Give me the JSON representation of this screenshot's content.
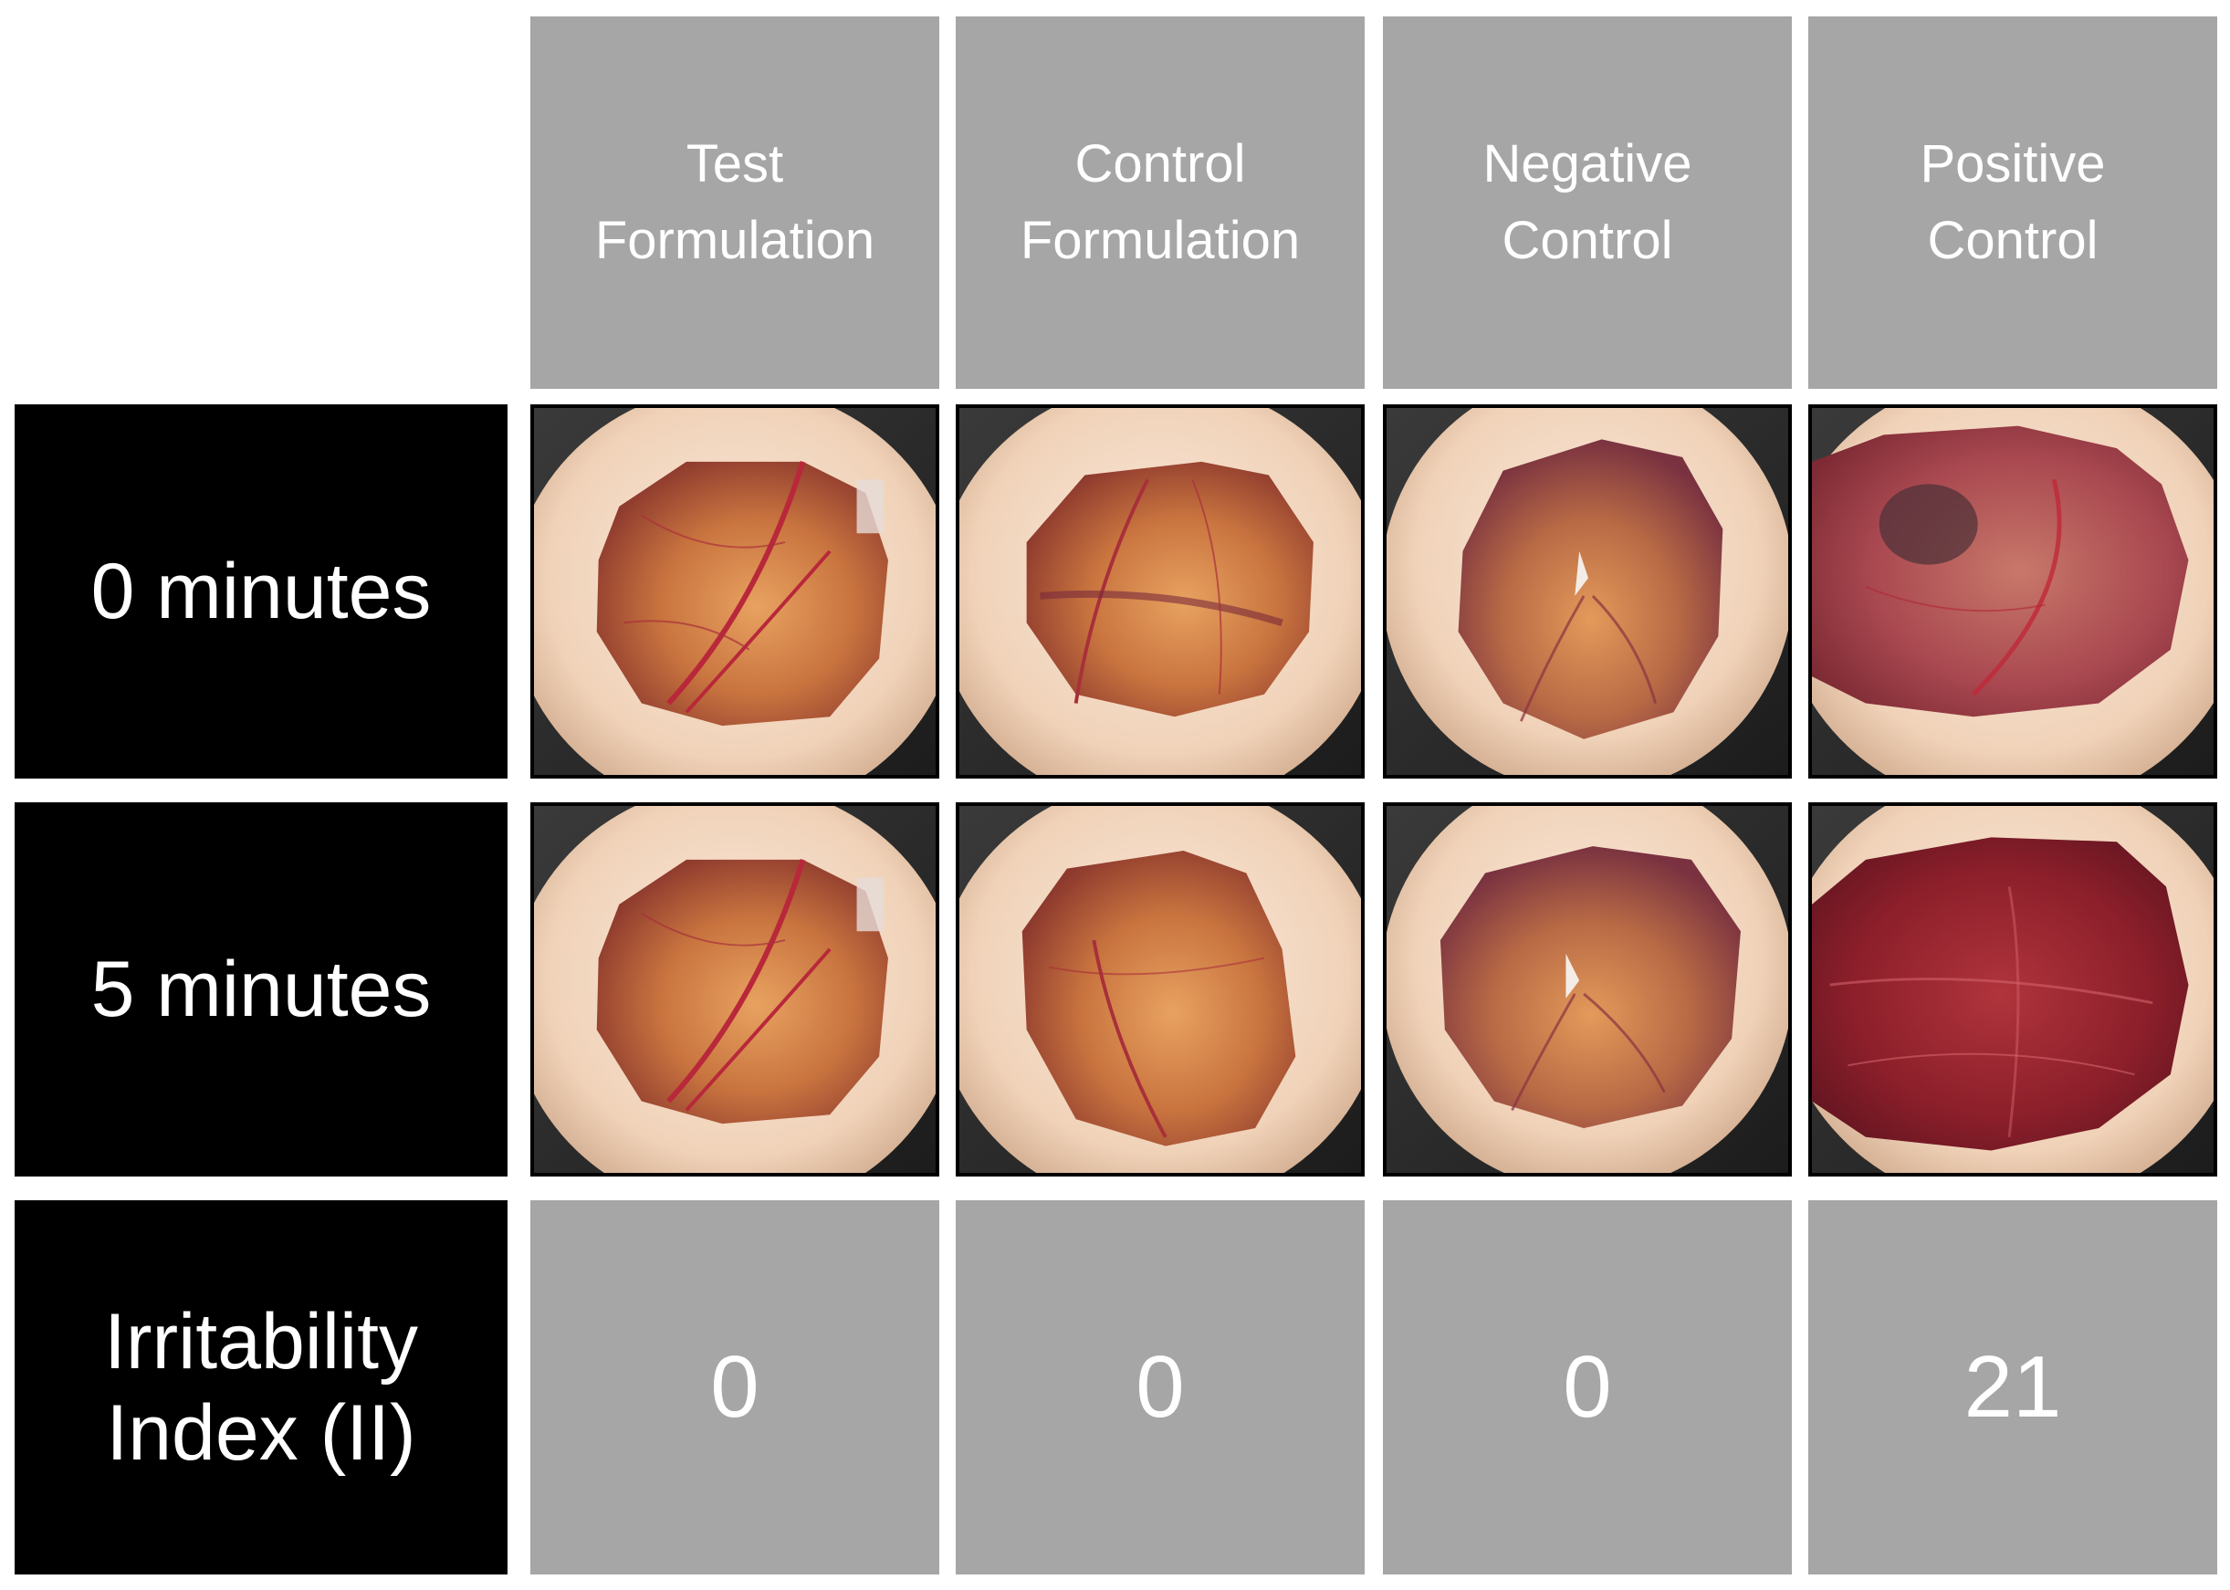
{
  "columns": [
    {
      "line1": "Test",
      "line2": "Formulation"
    },
    {
      "line1": "Control",
      "line2": "Formulation"
    },
    {
      "line1": "Negative",
      "line2": "Control"
    },
    {
      "line1": "Positive",
      "line2": "Control"
    }
  ],
  "rows": {
    "row0": "0 minutes",
    "row5": "5 minutes",
    "index_line1": "Irritability",
    "index_line2": "Index (II)"
  },
  "scores": [
    "0",
    "0",
    "0",
    "21"
  ],
  "colors": {
    "header_bg": "#a6a6a6",
    "label_bg": "#000000",
    "text": "#ffffff"
  }
}
